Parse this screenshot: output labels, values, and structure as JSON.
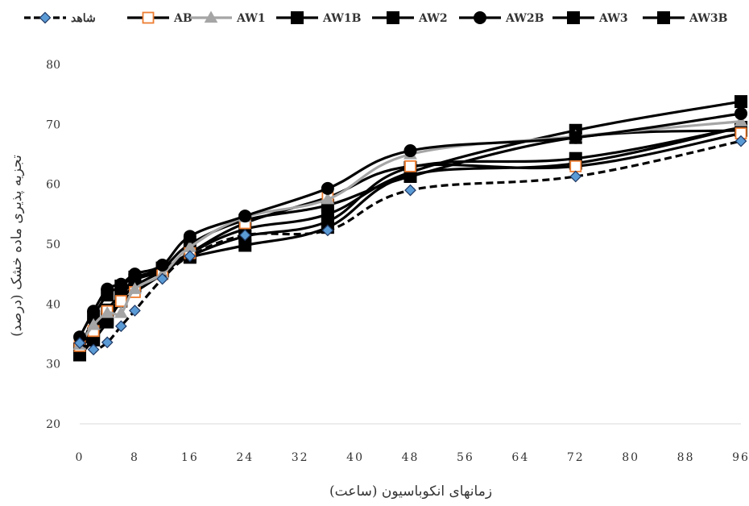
{
  "chart_data": {
    "type": "line",
    "xlabel": "زمانهای انکوباسیون (ساعت)",
    "ylabel": "تجزیه پذیری ماده خشک (درصد)",
    "ylim": [
      20,
      80
    ],
    "yticks": [
      20,
      30,
      40,
      50,
      60,
      70,
      80
    ],
    "xticks": [
      0,
      8,
      16,
      24,
      32,
      40,
      48,
      56,
      64,
      72,
      80,
      88,
      96
    ],
    "xlim": [
      0,
      96
    ],
    "grid": false,
    "legend_position": "top",
    "x": [
      0,
      2,
      4,
      6,
      8,
      12,
      16,
      24,
      36,
      48,
      72,
      96
    ],
    "series": [
      {
        "name": "شاهد",
        "marker": "diamond",
        "color": "#000000",
        "marker_fill": "#5b9bd5",
        "dashed": true,
        "values": [
          33.5,
          32.4,
          33.6,
          36.3,
          38.9,
          44.2,
          48.0,
          51.5,
          52.3,
          59.0,
          61.3,
          67.2
        ]
      },
      {
        "name": "AB",
        "marker": "square-open",
        "color": "#000000",
        "marker_fill": "#ffffff",
        "marker_stroke": "#ed7d31",
        "values": [
          33.0,
          35.5,
          38.8,
          40.5,
          42.0,
          45.0,
          48.5,
          53.5,
          57.8,
          63.0,
          63.0,
          68.5
        ]
      },
      {
        "name": "AW1",
        "marker": "triangle",
        "color": "#a5a5a5",
        "marker_fill": "#a5a5a5",
        "values": [
          33.2,
          36.5,
          38.5,
          38.5,
          42.5,
          45.0,
          49.5,
          54.5,
          57.5,
          65.0,
          68.0,
          70.5
        ]
      },
      {
        "name": "AW1B",
        "marker": "square",
        "color": "#000000",
        "marker_fill": "#000000",
        "values": [
          32.5,
          35.0,
          37.5,
          41.0,
          44.0,
          46.0,
          47.8,
          49.8,
          52.8,
          61.5,
          63.5,
          69.5
        ]
      },
      {
        "name": "AW2",
        "marker": "square",
        "color": "#000000",
        "marker_fill": "#000000",
        "values": [
          32.0,
          34.0,
          37.0,
          40.5,
          43.0,
          45.5,
          48.5,
          52.5,
          55.0,
          62.0,
          69.0,
          73.8
        ]
      },
      {
        "name": "AW2B",
        "marker": "circle",
        "color": "#000000",
        "marker_fill": "#000000",
        "values": [
          34.5,
          38.8,
          42.5,
          43.3,
          45.0,
          46.5,
          51.3,
          54.7,
          59.3,
          65.6,
          67.8,
          71.8
        ]
      },
      {
        "name": "AW3",
        "marker": "square",
        "color": "#000000",
        "marker_fill": "#000000",
        "values": [
          31.5,
          34.2,
          39.0,
          41.5,
          44.0,
          45.5,
          48.0,
          51.3,
          53.8,
          62.8,
          64.3,
          69.5
        ]
      },
      {
        "name": "AW3B",
        "marker": "square",
        "color": "#000000",
        "marker_fill": "#000000",
        "values": [
          32.0,
          37.8,
          41.5,
          43.0,
          44.5,
          46.0,
          50.0,
          54.0,
          56.5,
          61.3,
          67.8,
          69.0
        ]
      }
    ]
  }
}
